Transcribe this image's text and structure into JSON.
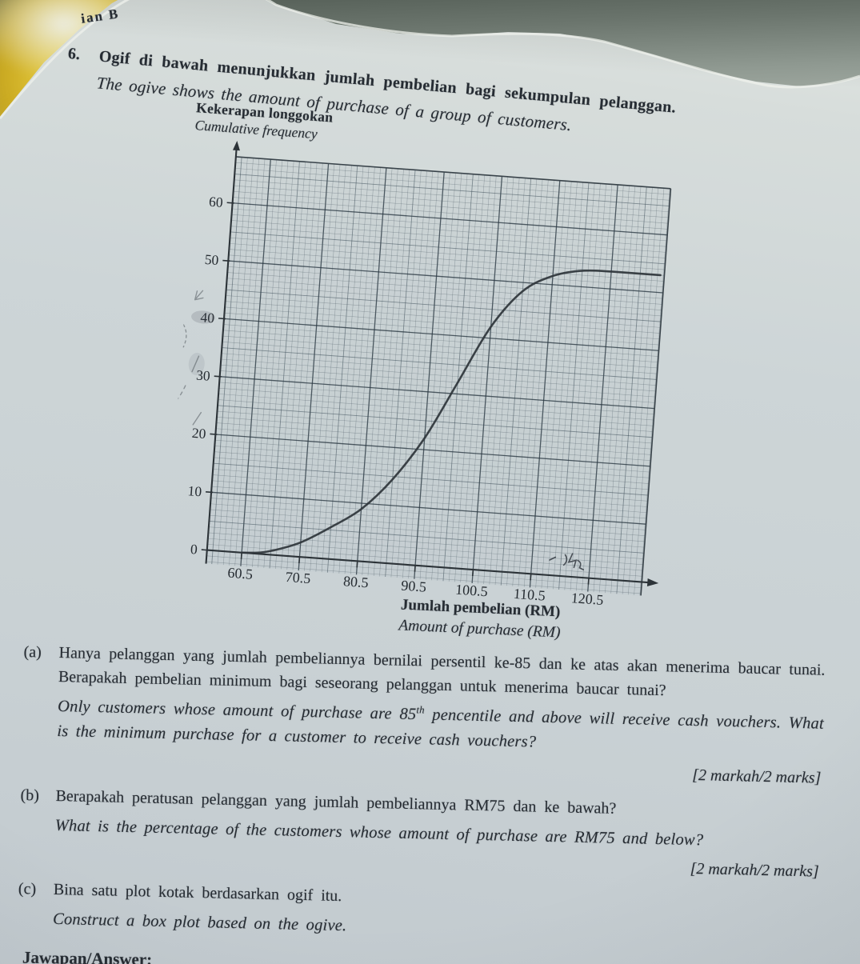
{
  "page": {
    "section_label": "ian B",
    "question_number": "6.",
    "intro_ms": "Ogif di bawah menunjukkan jumlah pembelian bagi sekumpulan pelanggan.",
    "intro_en": "The ogive shows the amount of purchase of a group of customers."
  },
  "chart_data": {
    "type": "line",
    "subtype": "ogive-cumulative-frequency-curve",
    "y_label_ms": "Kekerapan longgokan",
    "y_label_en": "Cumulative frequency",
    "x_label_ms": "Jumlah pembelian (RM)",
    "x_label_en": "Amount of purchase (RM)",
    "x_ticks": [
      "60.5",
      "70.5",
      "80.5",
      "90.5",
      "100.5",
      "110.5",
      "120.5"
    ],
    "y_ticks": [
      0,
      10,
      20,
      30,
      40,
      50,
      60
    ],
    "xlim": [
      54.5,
      129.7
    ],
    "ylim": [
      0,
      68
    ],
    "grid": "graph-paper, minor 1 unit, medium 5 units, major 10 units",
    "points": [
      [
        60.5,
        0
      ],
      [
        64,
        0.3
      ],
      [
        67.5,
        1.3
      ],
      [
        70.5,
        2.5
      ],
      [
        75.5,
        5.5
      ],
      [
        80.5,
        9
      ],
      [
        85.5,
        14.5
      ],
      [
        90.5,
        22
      ],
      [
        95.5,
        32
      ],
      [
        100.5,
        42
      ],
      [
        105.5,
        48.5
      ],
      [
        110.5,
        51.5
      ],
      [
        115,
        52.7
      ],
      [
        120.5,
        53
      ],
      [
        129,
        53
      ]
    ],
    "plateau_value": 53
  },
  "questions": [
    {
      "label": "(a)",
      "ms": "Hanya pelanggan yang jumlah pembeliannya bernilai persentil ke-85 dan ke atas akan menerima baucar tunai. Berapakah pembelian minimum bagi seseorang pelanggan untuk menerima baucar tunai?",
      "en_pre": "Only customers whose amount of purchase are 85",
      "en_sup": "th",
      "en_post": " pencentile and above will receive cash vouchers. What is the minimum purchase for a customer to receive cash vouchers?",
      "marks": "[2 markah/2 marks]"
    },
    {
      "label": "(b)",
      "ms": "Berapakah peratusan pelanggan yang jumlah pembeliannya RM75 dan ke bawah?",
      "en": "What is the percentage of the customers whose amount of purchase are RM75 and below?",
      "marks": "[2 markah/2 marks]"
    },
    {
      "label": "(c)",
      "ms": "Bina satu plot kotak berdasarkan ogif itu.",
      "en": "Construct a box plot based on the ogive.",
      "marks": "[4 markah/4 marks]"
    }
  ],
  "footer": {
    "answer_label": "Jawapan/Answer:"
  }
}
